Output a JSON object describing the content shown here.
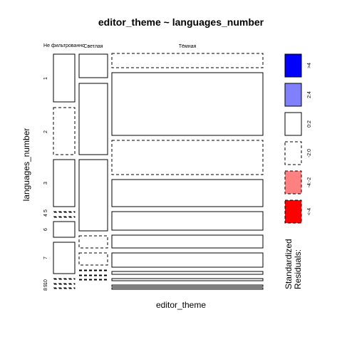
{
  "chart_data": {
    "type": "mosaic",
    "title": "editor_theme ~ languages_number",
    "xlabel": "editor_theme",
    "ylabel": "languages_number",
    "columns": [
      "Не фильтрованно",
      "Светлая",
      "Тёмная"
    ],
    "rows": [
      "1",
      "2",
      "3",
      "5",
      "4",
      "6",
      "7",
      "8",
      "9",
      "10"
    ],
    "row_labels_shown": [
      "1",
      "2",
      "3",
      "5",
      "4",
      "6",
      "7",
      "10",
      "9",
      "8"
    ],
    "cells": [
      {
        "column": "Не фильтрованно",
        "row": "1",
        "residual": "0:2"
      },
      {
        "column": "Не фильтрованно",
        "row": "2",
        "residual": "-2:0"
      },
      {
        "column": "Не фильтрованно",
        "row": "3",
        "residual": "0:2"
      },
      {
        "column": "Не фильтрованно",
        "row": "5",
        "residual": "-2:0"
      },
      {
        "column": "Не фильтрованно",
        "row": "4",
        "residual": "-2:0"
      },
      {
        "column": "Не фильтрованно",
        "row": "6",
        "residual": "0:2"
      },
      {
        "column": "Не фильтрованно",
        "row": "7",
        "residual": "0:2"
      },
      {
        "column": "Не фильтрованно",
        "row": "8",
        "residual": "-2:0"
      },
      {
        "column": "Не фильтрованно",
        "row": "9",
        "residual": "-2:0"
      },
      {
        "column": "Не фильтрованно",
        "row": "10",
        "residual": "-2:0"
      },
      {
        "column": "Светлая",
        "row": "1",
        "residual": "0:2"
      },
      {
        "column": "Светлая",
        "row": "2",
        "residual": "0:2"
      },
      {
        "column": "Светлая",
        "row": "3",
        "residual": "0:2"
      },
      {
        "column": "Светлая",
        "row": "6",
        "residual": "-2:0"
      },
      {
        "column": "Светлая",
        "row": "7",
        "residual": "-2:0"
      },
      {
        "column": "Светлая",
        "row": "8",
        "residual": "-2:0"
      },
      {
        "column": "Светлая",
        "row": "9",
        "residual": "-2:0"
      },
      {
        "column": "Светлая",
        "row": "10",
        "residual": "-2:0"
      },
      {
        "column": "Тёмная",
        "row": "1",
        "residual": "-2:0"
      },
      {
        "column": "Тёмная",
        "row": "2",
        "residual": "0:2"
      },
      {
        "column": "Тёмная",
        "row": "3",
        "residual": "-2:0"
      },
      {
        "column": "Тёмная",
        "row": "5",
        "residual": "0:2"
      },
      {
        "column": "Тёмная",
        "row": "6",
        "residual": "0:2"
      },
      {
        "column": "Тёмная",
        "row": "7",
        "residual": "0:2"
      },
      {
        "column": "Тёмная",
        "row": "8",
        "residual": "0:2"
      },
      {
        "column": "Тёмная",
        "row": "9",
        "residual": "0:2"
      },
      {
        "column": "Тёмная",
        "row": "10",
        "residual": "0:2"
      }
    ],
    "legend": {
      "title": [
        "Standardized",
        "Residuals:"
      ],
      "placement": "right",
      "entries": [
        {
          "label": ">4",
          "fill": "#0000ff",
          "dashed": false
        },
        {
          "label": "2:4",
          "fill": "#8080ff",
          "dashed": false
        },
        {
          "label": "0:2",
          "fill": "#ffffff",
          "dashed": false
        },
        {
          "label": "-2:0",
          "fill": "#ffffff",
          "dashed": true
        },
        {
          "label": "-4:-2",
          "fill": "#ff8080",
          "dashed": true
        },
        {
          "label": "<-4",
          "fill": "#ff0000",
          "dashed": true
        }
      ]
    }
  }
}
